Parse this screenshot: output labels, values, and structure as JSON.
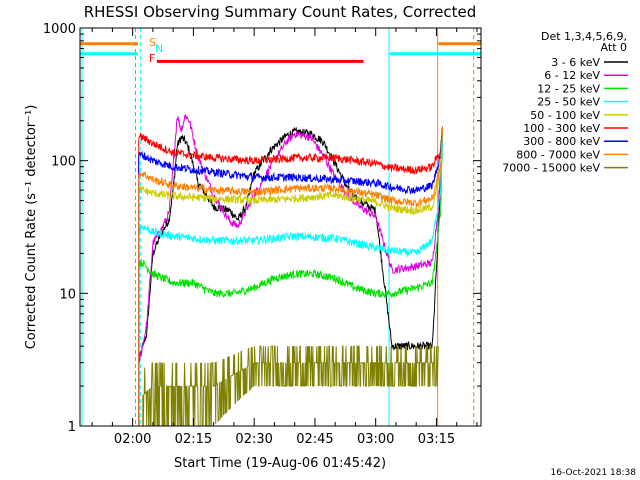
{
  "chart_data": {
    "type": "line",
    "title": "RHESSI Observing Summary Count Rates, Corrected",
    "xlabel": "Start Time (19-Aug-06 01:45:42)",
    "ylabel": "Corrected Count Rate (s⁻¹ detector⁻¹)",
    "yscale": "log",
    "ylim": [
      1,
      1000
    ],
    "xlim_minutes": [
      -13,
      86
    ],
    "x_ticks": [
      {
        "label": "02:00",
        "minute": 0
      },
      {
        "label": "02:15",
        "minute": 15
      },
      {
        "label": "02:30",
        "minute": 30
      },
      {
        "label": "02:45",
        "minute": 45
      },
      {
        "label": "03:00",
        "minute": 60
      },
      {
        "label": "03:15",
        "minute": 75
      }
    ],
    "y_ticks": [
      {
        "label": "1",
        "value": 1
      },
      {
        "label": "10",
        "value": 10
      },
      {
        "label": "100",
        "value": 100
      },
      {
        "label": "1000",
        "value": 1000
      }
    ],
    "legend_header": [
      "Det 1,3,4,5,6,9,",
      "Att 0"
    ],
    "series": [
      {
        "name": "3 - 6 keV",
        "color": "#000000",
        "x": [
          1.5,
          2.5,
          3.5,
          5,
          7,
          9,
          10,
          11,
          12,
          13,
          14,
          16,
          20,
          24,
          26,
          28,
          30,
          34,
          38,
          40,
          44,
          47,
          50,
          53,
          56,
          60,
          64,
          70,
          74,
          75.5,
          76.5
        ],
        "y": [
          3,
          4,
          5,
          20,
          28,
          36,
          60,
          130,
          150,
          140,
          120,
          70,
          45,
          42,
          36,
          45,
          80,
          120,
          155,
          165,
          160,
          140,
          95,
          62,
          50,
          42,
          4,
          4,
          4,
          30,
          160
        ]
      },
      {
        "name": "6 - 12 keV",
        "color": "#e000e0",
        "x": [
          1.5,
          2.5,
          3.5,
          5,
          7,
          9,
          10,
          11,
          12,
          13,
          14,
          16,
          20,
          24,
          26,
          28,
          30,
          34,
          38,
          40,
          44,
          47,
          50,
          53,
          56,
          60,
          64,
          70,
          74,
          75.5,
          76.5
        ],
        "y": [
          3,
          4,
          6,
          24,
          30,
          40,
          90,
          220,
          170,
          220,
          200,
          110,
          55,
          35,
          32,
          42,
          55,
          90,
          140,
          160,
          150,
          110,
          75,
          55,
          45,
          38,
          15,
          16,
          17,
          45,
          170
        ]
      },
      {
        "name": "12 - 25 keV",
        "color": "#00e000",
        "x": [
          1.5,
          2.5,
          5,
          10,
          15,
          20,
          25,
          30,
          35,
          40,
          45,
          50,
          55,
          60,
          64,
          70,
          74,
          76,
          76.5
        ],
        "y": [
          17,
          17,
          14,
          12,
          12,
          10,
          10,
          11,
          13,
          14,
          14,
          13,
          11,
          10,
          10,
          11,
          12,
          40,
          150
        ]
      },
      {
        "name": "25 - 50 keV",
        "color": "#00ffff",
        "x": [
          1.5,
          2.5,
          5,
          10,
          20,
          30,
          40,
          50,
          60,
          64,
          70,
          74,
          76,
          76.5
        ],
        "y": [
          30,
          32,
          29,
          27,
          25,
          25,
          27,
          26,
          22,
          21,
          20,
          25,
          60,
          170
        ]
      },
      {
        "name": "50 - 100 keV",
        "color": "#cccc00",
        "x": [
          1.5,
          2.5,
          5,
          10,
          20,
          30,
          40,
          50,
          60,
          64,
          70,
          74,
          76,
          76.5
        ],
        "y": [
          60,
          60,
          57,
          54,
          52,
          50,
          52,
          55,
          49,
          44,
          42,
          45,
          80,
          180
        ]
      },
      {
        "name": "100 - 300 keV",
        "color": "#ff0000",
        "x": [
          1.5,
          2.5,
          5,
          10,
          20,
          30,
          40,
          50,
          60,
          64,
          70,
          74,
          76,
          76.5
        ],
        "y": [
          150,
          150,
          135,
          115,
          105,
          100,
          105,
          105,
          95,
          88,
          85,
          90,
          120,
          180
        ]
      },
      {
        "name": "300 - 800 keV",
        "color": "#0000ff",
        "x": [
          1.5,
          2.5,
          5,
          10,
          20,
          30,
          40,
          50,
          60,
          64,
          70,
          74,
          76,
          76.5
        ],
        "y": [
          110,
          110,
          100,
          90,
          82,
          75,
          75,
          72,
          68,
          63,
          60,
          65,
          110,
          180
        ]
      },
      {
        "name": "800 - 7000 keV",
        "color": "#ff8000",
        "x": [
          1.5,
          2.5,
          5,
          10,
          20,
          30,
          40,
          50,
          60,
          64,
          70,
          74,
          76,
          76.5
        ],
        "y": [
          80,
          80,
          72,
          65,
          60,
          58,
          62,
          62,
          55,
          50,
          48,
          52,
          90,
          180
        ]
      },
      {
        "name": "7000 - 15000 keV",
        "color": "#808000",
        "x": [
          2.5,
          5,
          10,
          20,
          30,
          40,
          50,
          60,
          64,
          70,
          74,
          75.5
        ],
        "y": [
          1.7,
          2,
          2,
          2,
          3,
          3,
          3,
          3,
          3,
          3,
          3,
          3
        ]
      }
    ],
    "annotations": [
      {
        "label": "S",
        "color": "#ff8000"
      },
      {
        "label": "N",
        "color": "#00ffff"
      },
      {
        "label": "F",
        "color": "#ff0000"
      }
    ],
    "flag_bars": [
      {
        "flag": "S",
        "color": "#ff8000",
        "y": 760,
        "segments": [
          [
            -13,
            1.3
          ],
          [
            75.5,
            86
          ]
        ]
      },
      {
        "flag": "N",
        "color": "#00ffff",
        "y": 640,
        "segments": [
          [
            -13,
            1.3
          ],
          [
            63.5,
            86
          ]
        ]
      },
      {
        "flag": "F",
        "color": "#ff0000",
        "y": 560,
        "segments": [
          [
            6,
            57
          ]
        ]
      }
    ],
    "vlines": [
      {
        "color": "#00ffff",
        "style": "solid",
        "x": -12.5
      },
      {
        "color": "#ff8000",
        "style": "dashed",
        "x": 0.7
      },
      {
        "color": "#00ffff",
        "style": "dashed",
        "x": 1.9
      },
      {
        "color": "#00ffff",
        "style": "solid",
        "x": 63.3
      },
      {
        "color": "#ff8000",
        "style": "solid",
        "x": 75.3
      },
      {
        "color": "#ff8000",
        "style": "dashed",
        "x": 84.2
      }
    ],
    "footer": "16-Oct-2021 18:38"
  }
}
